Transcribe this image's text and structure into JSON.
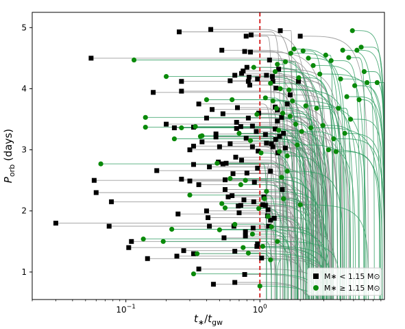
{
  "chart_data": {
    "type": "scatter",
    "title": "",
    "xlabel": "t∗/t_gw",
    "ylabel": "P_orb (days)",
    "xscale": "log",
    "xlim": [
      0.02,
      8.5
    ],
    "ylim": [
      0.55,
      5.25
    ],
    "x_ticks": [
      {
        "value": 0.1,
        "base": "10",
        "exp": "−1"
      },
      {
        "value": 1,
        "base": "10",
        "exp": "0"
      }
    ],
    "y_ticks": [
      1,
      2,
      3,
      4,
      5
    ],
    "reference_line": {
      "x": 1.0,
      "color": "#d62728",
      "style": "dashed"
    },
    "legend": {
      "location": "lower-right",
      "entries": [
        {
          "label": "M∗ < 1.15 M⊙",
          "marker": "square",
          "color": "#000000"
        },
        {
          "label": "M∗ ≥ 1.15 M⊙",
          "marker": "circle",
          "color": "#0a8a0a"
        }
      ]
    },
    "series": [
      {
        "name": "M∗ < 1.15 M⊙",
        "marker": "square",
        "color": "#000000",
        "track_color": "#8c8c8c",
        "points": [
          [
            0.03,
            1.8
          ],
          [
            0.055,
            4.5
          ],
          [
            0.058,
            2.5
          ],
          [
            0.06,
            2.3
          ],
          [
            0.075,
            1.75
          ],
          [
            0.078,
            2.15
          ],
          [
            0.105,
            1.4
          ],
          [
            0.11,
            1.5
          ],
          [
            0.145,
            1.22
          ],
          [
            0.16,
            3.94
          ],
          [
            0.17,
            2.66
          ],
          [
            0.2,
            3.42
          ],
          [
            0.23,
            3.36
          ],
          [
            0.24,
            1.26
          ],
          [
            0.245,
            1.95
          ],
          [
            0.25,
            4.93
          ],
          [
            0.26,
            2.52
          ],
          [
            0.26,
            3.96
          ],
          [
            0.26,
            4.12
          ],
          [
            0.27,
            1.35
          ],
          [
            0.3,
            2.49
          ],
          [
            0.3,
            3.0
          ],
          [
            0.32,
            1.3
          ],
          [
            0.32,
            2.76
          ],
          [
            0.32,
            3.06
          ],
          [
            0.32,
            3.37
          ],
          [
            0.35,
            1.05
          ],
          [
            0.35,
            2.43
          ],
          [
            0.35,
            3.75
          ],
          [
            0.37,
            3.13
          ],
          [
            0.4,
            2.0
          ],
          [
            0.4,
            3.52
          ],
          [
            0.41,
            1.89
          ],
          [
            0.42,
            1.75
          ],
          [
            0.42,
            2.72
          ],
          [
            0.43,
            4.97
          ],
          [
            0.44,
            3.66
          ],
          [
            0.45,
            0.8
          ],
          [
            0.47,
            3.21
          ],
          [
            0.47,
            3.26
          ],
          [
            0.49,
            2.8
          ],
          [
            0.5,
            3.05
          ],
          [
            0.52,
            4.63
          ],
          [
            0.53,
            2.77
          ],
          [
            0.53,
            3.59
          ],
          [
            0.54,
            1.56
          ],
          [
            0.55,
            2.51
          ],
          [
            0.55,
            2.35
          ],
          [
            0.56,
            2.78
          ],
          [
            0.58,
            2.23
          ],
          [
            0.6,
            3.1
          ],
          [
            0.6,
            4.13
          ],
          [
            0.62,
            2.25
          ],
          [
            0.63,
            2.61
          ],
          [
            0.64,
            1.75
          ],
          [
            0.65,
            0.83
          ],
          [
            0.65,
            1.34
          ],
          [
            0.65,
            4.22
          ],
          [
            0.66,
            2.88
          ],
          [
            0.67,
            3.35
          ],
          [
            0.67,
            3.45
          ],
          [
            0.68,
            3.69
          ],
          [
            0.69,
            2.08
          ],
          [
            0.7,
            1.97
          ],
          [
            0.72,
            2.09
          ],
          [
            0.72,
            3.38
          ],
          [
            0.73,
            2.83
          ],
          [
            0.73,
            4.25
          ],
          [
            0.75,
            4.29
          ],
          [
            0.76,
            2.18
          ],
          [
            0.77,
            0.96
          ],
          [
            0.77,
            4.61
          ],
          [
            0.78,
            1.59
          ],
          [
            0.78,
            1.66
          ],
          [
            0.79,
            4.86
          ],
          [
            0.79,
            3.19
          ],
          [
            0.8,
            2.62
          ],
          [
            0.8,
            4.35
          ],
          [
            0.82,
            3.52
          ],
          [
            0.82,
            4.12
          ],
          [
            0.83,
            4.19
          ],
          [
            0.84,
            4.06
          ],
          [
            0.85,
            4.6
          ],
          [
            0.86,
            4.88
          ],
          [
            0.88,
            3.05
          ],
          [
            0.88,
            3.39
          ],
          [
            0.89,
            1.72
          ],
          [
            0.9,
            2.15
          ],
          [
            0.91,
            2.47
          ],
          [
            0.94,
            3.3
          ],
          [
            0.95,
            1.42
          ],
          [
            0.96,
            1.46
          ],
          [
            0.96,
            2.7
          ],
          [
            0.96,
            4.16
          ],
          [
            0.97,
            2.98
          ],
          [
            0.98,
            3.6
          ],
          [
            1.03,
            1.23
          ],
          [
            1.05,
            2.1
          ],
          [
            1.07,
            2.23
          ],
          [
            1.1,
            2.09
          ],
          [
            1.1,
            3.25
          ],
          [
            1.12,
            4.22
          ],
          [
            1.12,
            3.11
          ],
          [
            1.14,
            1.92
          ],
          [
            1.15,
            2.02
          ],
          [
            1.16,
            1.75
          ],
          [
            1.18,
            4.47
          ],
          [
            1.2,
            1.85
          ],
          [
            1.2,
            2.65
          ],
          [
            1.22,
            3.1
          ],
          [
            1.24,
            4.2
          ],
          [
            1.25,
            3.05
          ],
          [
            1.28,
            1.88
          ],
          [
            1.3,
            3.7
          ],
          [
            1.31,
            3.17
          ],
          [
            1.32,
            4.01
          ],
          [
            1.35,
            3.65
          ],
          [
            1.36,
            2.95
          ],
          [
            1.38,
            4.32
          ],
          [
            1.4,
            3.22
          ],
          [
            1.42,
            4.95
          ],
          [
            1.45,
            3.53
          ],
          [
            1.47,
            2.35
          ],
          [
            1.5,
            3.27
          ],
          [
            1.55,
            3.03
          ],
          [
            1.6,
            3.75
          ],
          [
            1.68,
            3.9
          ],
          [
            1.94,
            4.12
          ],
          [
            2.0,
            4.86
          ],
          [
            1.3,
            3.34
          ],
          [
            1.25,
            4.12
          ],
          [
            1.35,
            3.47
          ]
        ]
      },
      {
        "name": "M∗ ≥ 1.15 M⊙",
        "marker": "circle",
        "color": "#0a8a0a",
        "track_color": "#2e9c60",
        "points": [
          [
            0.065,
            2.77
          ],
          [
            0.115,
            4.47
          ],
          [
            0.135,
            1.54
          ],
          [
            0.14,
            3.53
          ],
          [
            0.14,
            3.37
          ],
          [
            0.19,
            1.5
          ],
          [
            0.2,
            4.2
          ],
          [
            0.22,
            1.7
          ],
          [
            0.23,
            3.18
          ],
          [
            0.26,
            3.36
          ],
          [
            0.3,
            2.26
          ],
          [
            0.32,
            0.97
          ],
          [
            0.33,
            3.38
          ],
          [
            0.34,
            1.3
          ],
          [
            0.36,
            3.22
          ],
          [
            0.37,
            3.23
          ],
          [
            0.4,
            3.82
          ],
          [
            0.48,
            2.78
          ],
          [
            0.5,
            1.69
          ],
          [
            0.52,
            2.12
          ],
          [
            0.55,
            2.05
          ],
          [
            0.6,
            2.53
          ],
          [
            0.62,
            3.82
          ],
          [
            0.65,
            1.78
          ],
          [
            0.7,
            3.27
          ],
          [
            0.72,
            2.43
          ],
          [
            0.75,
            1.4
          ],
          [
            0.78,
            2.5
          ],
          [
            0.82,
            1.31
          ],
          [
            0.85,
            3.15
          ],
          [
            0.88,
            1.62
          ],
          [
            0.9,
            4.35
          ],
          [
            0.95,
            3.58
          ],
          [
            0.98,
            2.04
          ],
          [
            1.0,
            0.77
          ],
          [
            1.02,
            2.95
          ],
          [
            1.05,
            1.42
          ],
          [
            1.08,
            2.2
          ],
          [
            1.1,
            3.85
          ],
          [
            1.12,
            2.32
          ],
          [
            1.15,
            1.91
          ],
          [
            1.2,
            4.09
          ],
          [
            1.22,
            1.74
          ],
          [
            1.25,
            3.8
          ],
          [
            1.3,
            4.28
          ],
          [
            1.33,
            3.68
          ],
          [
            1.35,
            4.4
          ],
          [
            1.38,
            3.32
          ],
          [
            1.4,
            2.97
          ],
          [
            1.42,
            4.0
          ],
          [
            1.48,
            3.6
          ],
          [
            1.55,
            4.44
          ],
          [
            1.6,
            2.65
          ],
          [
            1.68,
            3.55
          ],
          [
            1.75,
            3.8
          ],
          [
            1.8,
            4.65
          ],
          [
            1.85,
            3.42
          ],
          [
            1.9,
            3.08
          ],
          [
            1.95,
            4.18
          ],
          [
            2.0,
            2.1
          ],
          [
            2.05,
            3.3
          ],
          [
            2.1,
            4.62
          ],
          [
            2.2,
            3.72
          ],
          [
            2.3,
            4.5
          ],
          [
            2.4,
            3.36
          ],
          [
            2.5,
            4.38
          ],
          [
            2.65,
            3.68
          ],
          [
            2.8,
            4.24
          ],
          [
            2.95,
            3.4
          ],
          [
            3.1,
            4.55
          ],
          [
            3.25,
            3.0
          ],
          [
            3.4,
            4.46
          ],
          [
            3.55,
            3.18
          ],
          [
            3.7,
            2.97
          ],
          [
            3.85,
            3.68
          ],
          [
            4.0,
            4.16
          ],
          [
            4.15,
            4.63
          ],
          [
            4.3,
            3.27
          ],
          [
            4.45,
            3.87
          ],
          [
            4.6,
            4.51
          ],
          [
            4.75,
            3.5
          ],
          [
            4.9,
            4.95
          ],
          [
            5.1,
            4.05
          ],
          [
            5.3,
            4.63
          ],
          [
            5.5,
            3.82
          ],
          [
            5.7,
            4.68
          ],
          [
            6.0,
            4.28
          ],
          [
            6.3,
            4.1
          ],
          [
            7.5,
            4.1
          ],
          [
            1.5,
            2.2
          ],
          [
            1.35,
            1.5
          ],
          [
            1.6,
            2.9
          ],
          [
            1.2,
            1.2
          ],
          [
            1.7,
            4.58
          ],
          [
            1.45,
            2.55
          ],
          [
            1.65,
            3.98
          ]
        ]
      }
    ]
  }
}
